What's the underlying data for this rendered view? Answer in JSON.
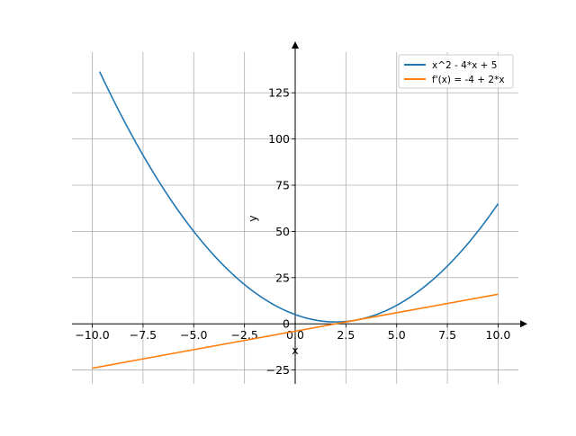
{
  "chart_data": {
    "type": "line",
    "title": "",
    "xlabel": "x",
    "ylabel": "y",
    "xlim": [
      -11.0,
      11.0
    ],
    "ylim": [
      -32.5,
      147.0
    ],
    "grid": true,
    "legend_position": "top-right",
    "x_ticks": [
      -10.0,
      -7.5,
      -5.0,
      -2.5,
      0.0,
      2.5,
      5.0,
      7.5,
      10.0
    ],
    "x_tick_labels": [
      "−10.0",
      "−7.5",
      "−5.0",
      "−2.5",
      "0.0",
      "2.5",
      "5.0",
      "7.5",
      "10.0"
    ],
    "y_ticks": [
      -25,
      25,
      50,
      75,
      100,
      125
    ],
    "y_tick_labels": [
      "−25",
      "25",
      "50",
      "75",
      "100",
      "125"
    ],
    "origin_label": "0",
    "series": [
      {
        "name": "x^2 - 4*x + 5",
        "color": "#1f77b4",
        "x": [
          -9.64,
          -9.0,
          -8.0,
          -7.0,
          -6.0,
          -5.0,
          -4.0,
          -3.0,
          -2.0,
          -1.0,
          0.0,
          1.0,
          2.0,
          3.0,
          4.0,
          5.0,
          6.0,
          7.0,
          8.0,
          9.0,
          10.0
        ],
        "y": [
          136.5,
          122.0,
          101.0,
          82.0,
          65.0,
          50.0,
          37.0,
          26.0,
          17.0,
          10.0,
          5.0,
          2.0,
          1.0,
          2.0,
          5.0,
          10.0,
          17.0,
          26.0,
          37.0,
          50.0,
          65.0
        ]
      },
      {
        "name": "f'(x) = -4 + 2*x",
        "color": "#ff7f0e",
        "x": [
          -10.0,
          10.0
        ],
        "y": [
          -24.0,
          16.0
        ]
      }
    ]
  }
}
